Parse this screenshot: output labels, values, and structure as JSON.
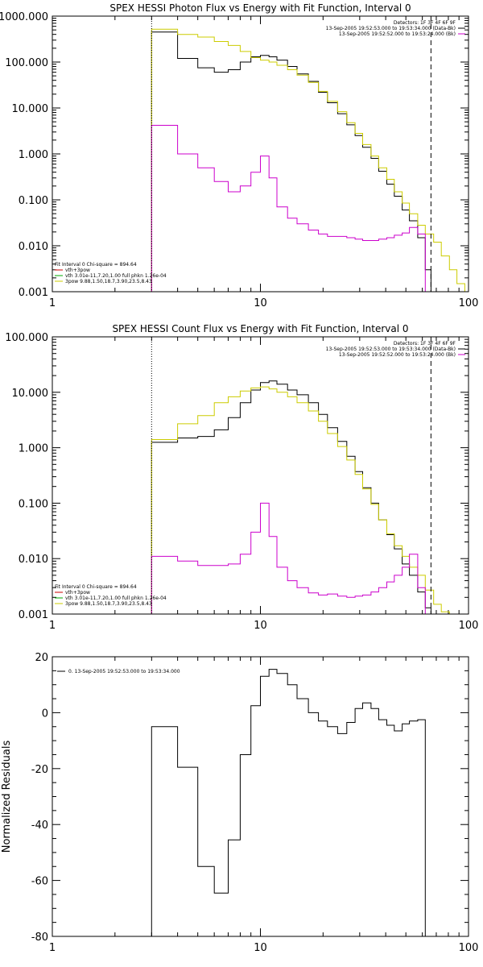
{
  "chart_data": [
    {
      "type": "line",
      "title": "SPEX HESSI Photon Flux vs Energy with Fit Function, Interval 0",
      "x_scale": "log",
      "y_scale": "log",
      "xlim": [
        1,
        100
      ],
      "ylim": [
        0.001,
        1000
      ],
      "x_ticks": [
        "1",
        "10",
        "100"
      ],
      "y_ticks": [
        "1000.000",
        "100.000",
        "10.000",
        "1.000",
        "0.100",
        "0.010",
        "0.001"
      ],
      "legend_top": [
        "Detectors: 1F 3F 4F 6F 9F",
        "13-Sep-2005 19:52:53.000 to 19:53:34.000 (Data-Bk)",
        "13-Sep-2005 19:52:52.000 to 19:53:24.000 (Bk)"
      ],
      "legend_top_colors": [
        "#000000",
        "#000000",
        "#cc00cc"
      ],
      "legend_bottom": [
        "Fit Interval 0   Chi-square = 894.64",
        "vth+3pow",
        "vth 3.01e-11,7.20,1.00  full phkn 1.26e-04",
        "3pow 9.88,1.50,18.7,3.90,23.5,8.43"
      ],
      "legend_bottom_colors": [
        "#000000",
        "#cc0000",
        "#00aa00",
        "#cccc00"
      ],
      "fit_range": [
        3,
        66
      ],
      "series": [
        {
          "color": "#000000",
          "edges": [
            3,
            4,
            5,
            6,
            7,
            8,
            9,
            10,
            11,
            12,
            13.5,
            15,
            17,
            19,
            21,
            23.5,
            26,
            28.5,
            31,
            34,
            37,
            40.5,
            44,
            48,
            52,
            57,
            62,
            66
          ],
          "values": [
            450,
            120,
            75,
            60,
            68,
            100,
            130,
            140,
            130,
            110,
            80,
            55,
            38,
            22,
            13,
            7.5,
            4.3,
            2.5,
            1.4,
            0.8,
            0.42,
            0.22,
            0.12,
            0.06,
            0.035,
            0.015,
            0.003
          ]
        },
        {
          "color": "#cccc00",
          "edges": [
            3,
            4,
            5,
            6,
            7,
            8,
            9,
            10,
            11,
            12,
            13.5,
            15,
            17,
            19,
            21,
            23.5,
            26,
            28.5,
            31,
            34,
            37,
            40.5,
            44,
            48,
            52,
            57,
            62,
            68,
            74,
            81,
            88,
            96
          ],
          "values": [
            520,
            400,
            350,
            280,
            230,
            170,
            125,
            110,
            100,
            85,
            68,
            52,
            36,
            23,
            14,
            8.3,
            4.8,
            2.8,
            1.6,
            0.9,
            0.5,
            0.28,
            0.15,
            0.085,
            0.05,
            0.028,
            0.018,
            0.012,
            0.006,
            0.003,
            0.0015
          ]
        },
        {
          "color": "#cc00cc",
          "edges": [
            3,
            4,
            5,
            6,
            7,
            8,
            9,
            10,
            11,
            12,
            13.5,
            15,
            17,
            19,
            21,
            23.5,
            26,
            28.5,
            31,
            34,
            37,
            40.5,
            44,
            48,
            52,
            57,
            62,
            66
          ],
          "values": [
            4.2,
            1.0,
            0.5,
            0.25,
            0.15,
            0.2,
            0.4,
            0.9,
            0.3,
            0.07,
            0.04,
            0.03,
            0.022,
            0.018,
            0.016,
            0.016,
            0.015,
            0.014,
            0.013,
            0.013,
            0.014,
            0.015,
            0.017,
            0.019,
            0.025,
            0.018,
            0.001
          ]
        }
      ]
    },
    {
      "type": "line",
      "title": "SPEX HESSI Count Flux vs Energy with Fit Function, Interval 0",
      "x_scale": "log",
      "y_scale": "log",
      "xlim": [
        1,
        100
      ],
      "ylim": [
        0.001,
        100
      ],
      "x_ticks": [
        "1",
        "10",
        "100"
      ],
      "y_ticks": [
        "100.000",
        "10.000",
        "1.000",
        "0.100",
        "0.010",
        "0.001"
      ],
      "legend_top": [
        "Detectors: 1F 3F 4F 6F 9F",
        "13-Sep-2005 19:52:53.000 to 19:53:34.000 (Data-Bk)",
        "13-Sep-2005 19:52:52.000 to 19:53:24.000 (Bk)"
      ],
      "legend_top_colors": [
        "#000000",
        "#000000",
        "#cc00cc"
      ],
      "legend_bottom": [
        "Fit Interval 0   Chi-square = 894.64",
        "vth+3pow",
        "vth 3.01e-11,7.20,1.00  full phkn 1.26e-04",
        "3pow 9.88,1.50,18.7,3.90,23.5,8.43"
      ],
      "legend_bottom_colors": [
        "#000000",
        "#cc0000",
        "#00aa00",
        "#cccc00"
      ],
      "fit_range": [
        3,
        66
      ],
      "series": [
        {
          "color": "#000000",
          "edges": [
            3,
            4,
            5,
            6,
            7,
            8,
            9,
            10,
            11,
            12,
            13.5,
            15,
            17,
            19,
            21,
            23.5,
            26,
            28.5,
            31,
            34,
            37,
            40.5,
            44,
            48,
            52,
            57,
            62,
            66
          ],
          "values": [
            1.25,
            1.5,
            1.6,
            2.1,
            3.5,
            6.5,
            11,
            15,
            16,
            14,
            11,
            9,
            6.5,
            4,
            2.3,
            1.3,
            0.7,
            0.37,
            0.19,
            0.1,
            0.05,
            0.027,
            0.015,
            0.008,
            0.005,
            0.0025,
            0.0013
          ]
        },
        {
          "color": "#cccc00",
          "edges": [
            3,
            4,
            5,
            6,
            7,
            8,
            9,
            10,
            11,
            12,
            13.5,
            15,
            17,
            19,
            21,
            23.5,
            26,
            28.5,
            31,
            34,
            37,
            40.5,
            44,
            48,
            52,
            57,
            62,
            68,
            74,
            81,
            88
          ],
          "values": [
            1.4,
            2.7,
            3.8,
            6.5,
            8.3,
            10.5,
            12,
            12.5,
            11.5,
            10,
            8.3,
            6.5,
            4.6,
            3,
            1.8,
            1.05,
            0.6,
            0.33,
            0.18,
            0.095,
            0.05,
            0.028,
            0.017,
            0.011,
            0.007,
            0.005,
            0.0027,
            0.0015,
            0.0011,
            0.0009
          ]
        },
        {
          "color": "#cc00cc",
          "edges": [
            3,
            4,
            5,
            6,
            7,
            8,
            9,
            10,
            11,
            12,
            13.5,
            15,
            17,
            19,
            21,
            23.5,
            26,
            28.5,
            31,
            34,
            37,
            40.5,
            44,
            48,
            52,
            57,
            62,
            66
          ],
          "values": [
            0.011,
            0.009,
            0.0075,
            0.0075,
            0.008,
            0.012,
            0.03,
            0.1,
            0.025,
            0.007,
            0.004,
            0.003,
            0.0024,
            0.0022,
            0.0023,
            0.0021,
            0.002,
            0.0021,
            0.0022,
            0.0025,
            0.003,
            0.0038,
            0.005,
            0.007,
            0.012,
            0.003,
            0.001
          ]
        }
      ]
    },
    {
      "type": "line",
      "title": "",
      "x_scale": "log",
      "y_scale": "linear",
      "xlim": [
        1,
        100
      ],
      "ylim": [
        -80,
        20
      ],
      "x_ticks": [
        "1",
        "10",
        "100"
      ],
      "y_ticks": [
        "20",
        "0",
        "-20",
        "-40",
        "-60",
        "-80"
      ],
      "ylabel": "Normalized Residuals",
      "legend_top": [
        "0. 13-Sep-2005 19:52:53.000 to 19:53:34.000"
      ],
      "legend_top_colors": [
        "#000000"
      ],
      "series": [
        {
          "color": "#000000",
          "edges": [
            3,
            4,
            5,
            6,
            7,
            8,
            9,
            10,
            11,
            12,
            13.5,
            15,
            17,
            19,
            21,
            23.5,
            26,
            28.5,
            31,
            34,
            37,
            40.5,
            44,
            48,
            52,
            57,
            62,
            66
          ],
          "values": [
            -5,
            -19.5,
            -55,
            -64.5,
            -45.5,
            -15,
            2.5,
            13,
            15.5,
            14,
            10,
            5,
            0,
            -3,
            -5,
            -7.5,
            -3.5,
            1.5,
            3.5,
            1.5,
            -2.5,
            -4.5,
            -6.5,
            -4,
            -3,
            -2.5,
            -80
          ]
        }
      ]
    }
  ]
}
